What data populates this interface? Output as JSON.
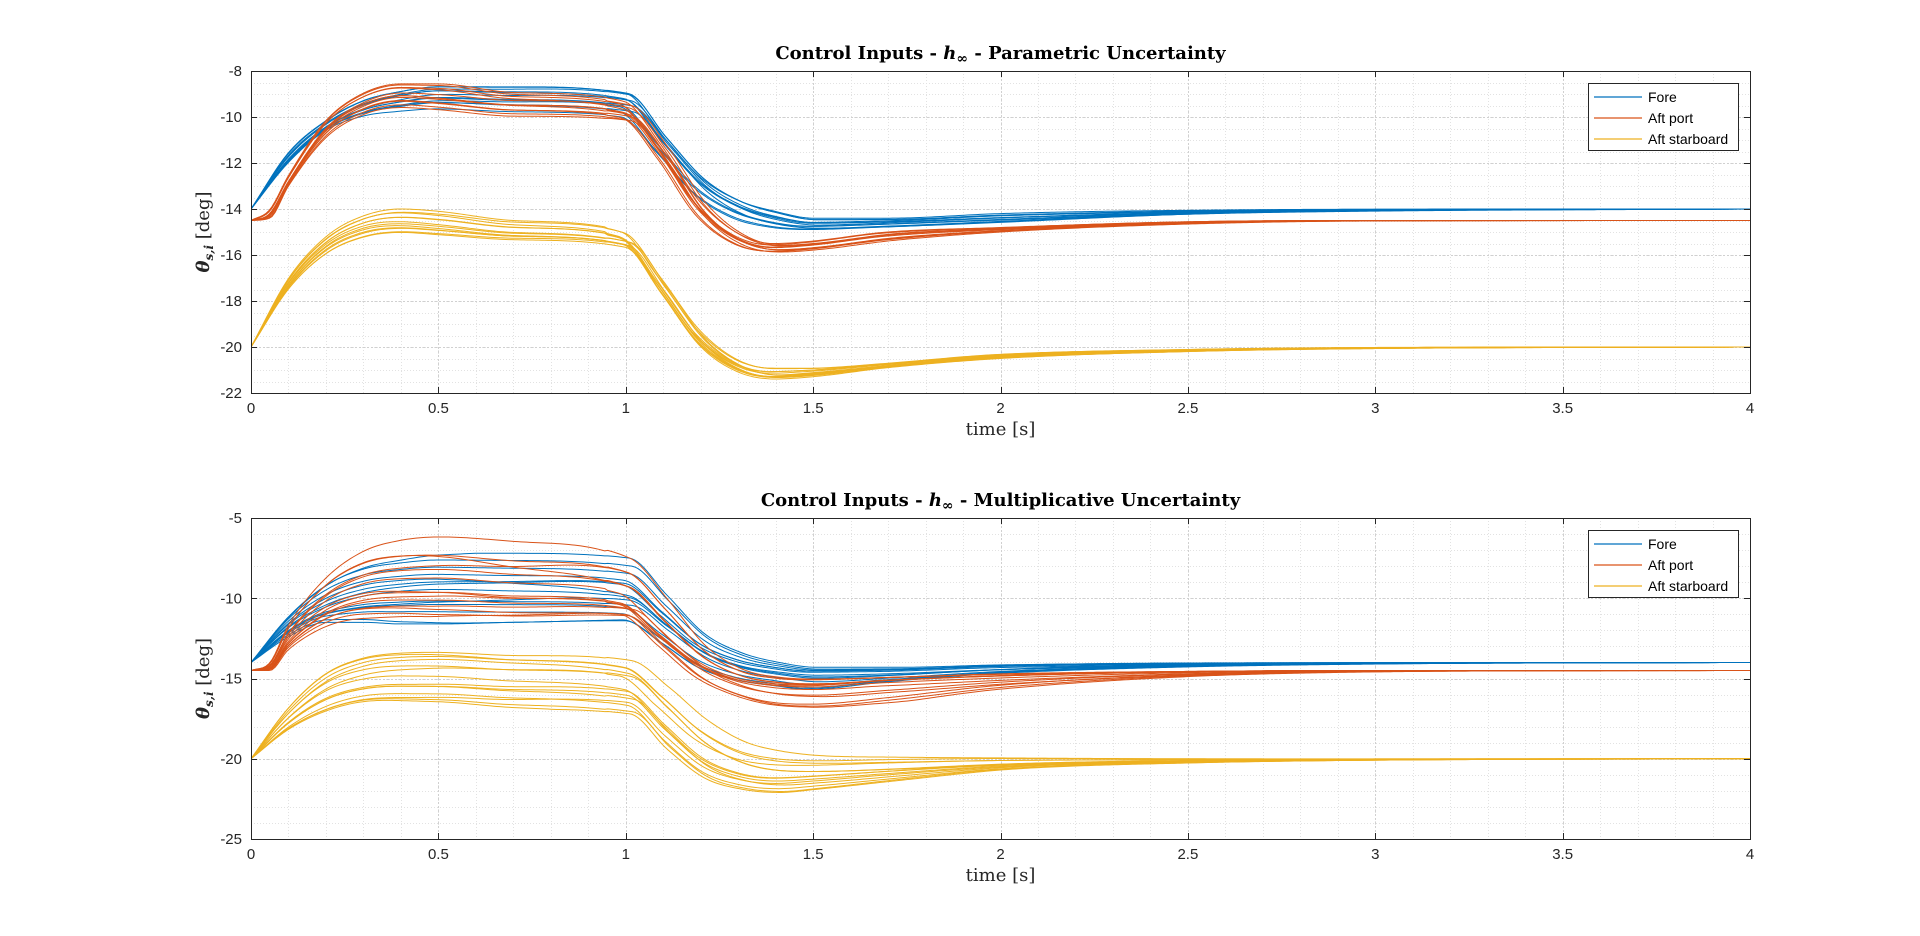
{
  "chart_data": [
    {
      "type": "line",
      "title": "Control Inputs - h∞ - Parametric Uncertainty",
      "title_parts": [
        "Control Inputs - ",
        "h",
        "∞",
        " - Parametric Uncertainty"
      ],
      "xlabel": "time [s]",
      "ylabel_parts": [
        "θ",
        "s,i",
        " [deg]"
      ],
      "xlim": [
        0,
        4
      ],
      "ylim": [
        -22,
        -8
      ],
      "xticks": [
        0,
        0.5,
        1,
        1.5,
        2,
        2.5,
        3,
        3.5,
        4
      ],
      "xtick_labels": [
        "0",
        "0.5",
        "1",
        "1.5",
        "2",
        "2.5",
        "3",
        "3.5",
        "4"
      ],
      "yticks": [
        -22,
        -20,
        -18,
        -16,
        -14,
        -12,
        -10,
        -8
      ],
      "ytick_labels": [
        "-22",
        "-20",
        "-18",
        "-16",
        "-14",
        "-12",
        "-10",
        "-8"
      ],
      "grid": true,
      "minor_grid": true,
      "legend_location": "top-right",
      "runs_per_series": 12,
      "series": [
        {
          "name": "Fore",
          "color": "#0072BD",
          "x": [
            0,
            0.1,
            0.2,
            0.3,
            0.4,
            0.5,
            0.7,
            1.0,
            1.1,
            1.2,
            1.3,
            1.4,
            1.5,
            1.7,
            2.0,
            2.5,
            3.0,
            4.0
          ],
          "nominal": [
            -14,
            -11.8,
            -10.4,
            -9.6,
            -9.2,
            -9.0,
            -9.1,
            -9.4,
            -11.2,
            -13.0,
            -14.0,
            -14.5,
            -14.7,
            -14.6,
            -14.4,
            -14.15,
            -14.05,
            -14.0
          ],
          "envelope_low": [
            -14,
            -12.0,
            -10.6,
            -10.0,
            -9.8,
            -9.7,
            -9.8,
            -10.0,
            -11.6,
            -13.4,
            -14.4,
            -14.8,
            -14.9,
            -14.8,
            -14.6,
            -14.25,
            -14.1,
            -14.0
          ],
          "envelope_high": [
            -14,
            -11.5,
            -10.1,
            -9.2,
            -8.8,
            -8.6,
            -8.6,
            -8.9,
            -10.8,
            -12.6,
            -13.6,
            -14.1,
            -14.4,
            -14.4,
            -14.2,
            -14.05,
            -14.0,
            -14.0
          ]
        },
        {
          "name": "Aft port",
          "color": "#D95319",
          "x": [
            0,
            0.05,
            0.1,
            0.2,
            0.3,
            0.4,
            0.5,
            0.7,
            1.0,
            1.1,
            1.2,
            1.3,
            1.4,
            1.5,
            1.7,
            2.0,
            2.5,
            3.0,
            4.0
          ],
          "nominal": [
            -14.5,
            -14.2,
            -12.8,
            -10.5,
            -9.4,
            -9.0,
            -9.1,
            -9.4,
            -9.8,
            -11.6,
            -14.0,
            -15.3,
            -15.7,
            -15.6,
            -15.2,
            -14.9,
            -14.6,
            -14.5,
            -14.5
          ],
          "envelope_low": [
            -14.5,
            -14.4,
            -13.0,
            -10.9,
            -9.9,
            -9.6,
            -9.7,
            -10.0,
            -10.2,
            -12.0,
            -14.4,
            -15.6,
            -15.9,
            -15.8,
            -15.4,
            -15.0,
            -14.65,
            -14.52,
            -14.5
          ],
          "envelope_high": [
            -14.5,
            -14.0,
            -12.5,
            -10.1,
            -8.9,
            -8.5,
            -8.5,
            -8.9,
            -9.3,
            -11.2,
            -13.6,
            -15.0,
            -15.5,
            -15.4,
            -15.0,
            -14.8,
            -14.55,
            -14.5,
            -14.5
          ]
        },
        {
          "name": "Aft starboard",
          "color": "#EDB120",
          "x": [
            0,
            0.1,
            0.2,
            0.3,
            0.4,
            0.5,
            0.7,
            1.0,
            1.1,
            1.2,
            1.3,
            1.4,
            1.5,
            1.7,
            2.0,
            2.5,
            3.0,
            4.0
          ],
          "nominal": [
            -20,
            -17.3,
            -15.6,
            -14.8,
            -14.6,
            -14.7,
            -15.0,
            -15.4,
            -17.4,
            -19.6,
            -20.8,
            -21.2,
            -21.1,
            -20.8,
            -20.4,
            -20.15,
            -20.05,
            -20.0
          ],
          "envelope_low": [
            -20,
            -17.5,
            -16.0,
            -15.3,
            -15.1,
            -15.2,
            -15.4,
            -15.7,
            -17.8,
            -20.0,
            -21.1,
            -21.4,
            -21.3,
            -20.9,
            -20.5,
            -20.2,
            -20.07,
            -20.0
          ],
          "envelope_high": [
            -20,
            -17.0,
            -15.2,
            -14.3,
            -14.0,
            -14.1,
            -14.5,
            -15.0,
            -17.0,
            -19.2,
            -20.5,
            -20.9,
            -20.9,
            -20.7,
            -20.3,
            -20.1,
            -20.02,
            -20.0
          ]
        }
      ]
    },
    {
      "type": "line",
      "title": "Control Inputs - h∞ - Multiplicative Uncertainty",
      "title_parts": [
        "Control Inputs - ",
        "h",
        "∞",
        " - Multiplicative Uncertainty"
      ],
      "xlabel": "time [s]",
      "ylabel_parts": [
        "θ",
        "s,i",
        " [deg]"
      ],
      "xlim": [
        0,
        4
      ],
      "ylim": [
        -25,
        -5
      ],
      "xticks": [
        0,
        0.5,
        1,
        1.5,
        2,
        2.5,
        3,
        3.5,
        4
      ],
      "xtick_labels": [
        "0",
        "0.5",
        "1",
        "1.5",
        "2",
        "2.5",
        "3",
        "3.5",
        "4"
      ],
      "yticks": [
        -25,
        -20,
        -15,
        -10,
        -5
      ],
      "ytick_labels": [
        "-25",
        "-20",
        "-15",
        "-10",
        "-5"
      ],
      "grid": true,
      "minor_grid": true,
      "legend_location": "top-right",
      "runs_per_series": 14,
      "series": [
        {
          "name": "Fore",
          "color": "#0072BD",
          "x": [
            0,
            0.1,
            0.2,
            0.3,
            0.4,
            0.5,
            0.7,
            1.0,
            1.1,
            1.2,
            1.3,
            1.4,
            1.5,
            1.7,
            2.0,
            2.5,
            3.0,
            4.0
          ],
          "nominal": [
            -14,
            -11.8,
            -10.5,
            -9.8,
            -9.5,
            -9.4,
            -9.5,
            -9.9,
            -11.6,
            -13.3,
            -14.2,
            -14.6,
            -14.8,
            -14.7,
            -14.4,
            -14.15,
            -14.05,
            -14.0
          ],
          "envelope_low": [
            -14,
            -12.4,
            -11.5,
            -11.5,
            -11.6,
            -11.6,
            -11.5,
            -11.4,
            -12.8,
            -14.4,
            -15.2,
            -15.6,
            -15.9,
            -15.4,
            -14.8,
            -14.3,
            -14.1,
            -14.0
          ],
          "envelope_high": [
            -14,
            -11.0,
            -8.9,
            -7.8,
            -7.4,
            -7.2,
            -7.2,
            -7.5,
            -9.8,
            -12.2,
            -13.4,
            -14.0,
            -14.3,
            -14.3,
            -14.1,
            -14.0,
            -14.0,
            -14.0
          ]
        },
        {
          "name": "Aft port",
          "color": "#D95319",
          "x": [
            0,
            0.05,
            0.1,
            0.2,
            0.3,
            0.4,
            0.5,
            0.7,
            1.0,
            1.1,
            1.2,
            1.3,
            1.4,
            1.5,
            1.7,
            2.0,
            2.5,
            3.0,
            4.0
          ],
          "nominal": [
            -14.5,
            -14.3,
            -12.6,
            -10.6,
            -9.7,
            -9.5,
            -9.5,
            -9.8,
            -10.3,
            -12.2,
            -14.0,
            -15.0,
            -15.4,
            -15.5,
            -15.2,
            -14.9,
            -14.6,
            -14.5,
            -14.5
          ],
          "envelope_low": [
            -14.5,
            -14.5,
            -13.2,
            -11.8,
            -11.4,
            -11.4,
            -11.5,
            -11.5,
            -11.3,
            -13.2,
            -15.2,
            -16.3,
            -16.9,
            -17.0,
            -16.6,
            -15.7,
            -14.9,
            -14.6,
            -14.5
          ],
          "envelope_high": [
            -14.5,
            -14.0,
            -11.6,
            -8.6,
            -6.9,
            -6.2,
            -6.0,
            -6.3,
            -7.4,
            -10.0,
            -12.9,
            -14.4,
            -14.9,
            -15.0,
            -14.9,
            -14.7,
            -14.55,
            -14.5,
            -14.5
          ]
        },
        {
          "name": "Aft starboard",
          "color": "#EDB120",
          "x": [
            0,
            0.1,
            0.2,
            0.3,
            0.4,
            0.5,
            0.7,
            1.0,
            1.1,
            1.2,
            1.3,
            1.4,
            1.5,
            1.7,
            2.0,
            2.5,
            3.0,
            4.0
          ],
          "nominal": [
            -20,
            -17.6,
            -16.0,
            -15.3,
            -15.1,
            -15.1,
            -15.3,
            -15.7,
            -17.8,
            -19.9,
            -20.9,
            -21.2,
            -21.1,
            -20.8,
            -20.4,
            -20.15,
            -20.05,
            -20.0
          ],
          "envelope_low": [
            -20,
            -18.4,
            -17.4,
            -16.8,
            -16.7,
            -16.7,
            -16.9,
            -17.2,
            -19.4,
            -21.2,
            -21.9,
            -22.1,
            -21.9,
            -21.4,
            -20.7,
            -20.3,
            -20.1,
            -20.0
          ],
          "envelope_high": [
            -20,
            -16.7,
            -14.4,
            -13.3,
            -12.9,
            -12.8,
            -13.0,
            -13.5,
            -15.2,
            -17.3,
            -18.8,
            -19.5,
            -19.8,
            -19.9,
            -19.95,
            -20.0,
            -20.0,
            -20.0
          ]
        }
      ]
    }
  ]
}
